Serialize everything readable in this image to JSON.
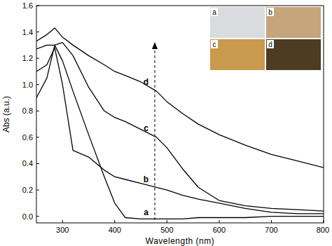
{
  "chart_data": {
    "type": "line",
    "x_label": "Wavelength (nm)",
    "y_label": "Abs (a.u.)",
    "x": [
      250,
      270,
      285,
      300,
      320,
      350,
      380,
      400,
      420,
      450,
      480,
      500,
      530,
      560,
      600,
      650,
      700,
      750,
      800
    ],
    "series": [
      {
        "name": "a",
        "color": "#000000",
        "values": [
          0.9,
          1.05,
          1.3,
          1.18,
          0.95,
          0.62,
          0.3,
          0.1,
          -0.01,
          -0.02,
          -0.02,
          -0.02,
          -0.02,
          -0.01,
          -0.01,
          -0.01,
          0.0,
          0.0,
          0.0
        ]
      },
      {
        "name": "b",
        "color": "#000000",
        "values": [
          1.1,
          1.15,
          1.28,
          1.0,
          0.5,
          0.45,
          0.35,
          0.3,
          0.28,
          0.25,
          0.22,
          0.2,
          0.16,
          0.13,
          0.1,
          0.06,
          0.03,
          0.02,
          0.02
        ]
      },
      {
        "name": "c",
        "color": "#000000",
        "values": [
          1.27,
          1.3,
          1.3,
          1.32,
          1.22,
          0.98,
          0.8,
          0.75,
          0.72,
          0.66,
          0.6,
          0.52,
          0.36,
          0.22,
          0.12,
          0.08,
          0.06,
          0.05,
          0.04
        ]
      },
      {
        "name": "d",
        "color": "#000000",
        "values": [
          1.33,
          1.38,
          1.43,
          1.36,
          1.3,
          1.22,
          1.15,
          1.1,
          1.07,
          1.02,
          0.95,
          0.87,
          0.78,
          0.7,
          0.62,
          0.54,
          0.47,
          0.42,
          0.37
        ]
      }
    ],
    "xlim": [
      250,
      800
    ],
    "xticks": [
      300,
      400,
      500,
      600,
      700,
      800
    ],
    "ylim": [
      -0.05,
      1.6
    ],
    "yticks": [
      {
        "value": 0,
        "label": "0.0"
      },
      {
        "value": 0.2,
        "label": "0.2"
      },
      {
        "value": 0.4,
        "label": "0.4"
      },
      {
        "value": 0.6,
        "label": "0.6"
      },
      {
        "value": 0.8,
        "label": "0.8"
      },
      {
        "value": 1,
        "label": "1.0"
      },
      {
        "value": 1.2,
        "label": "1.2"
      },
      {
        "value": 1.4,
        "label": "1.4"
      },
      {
        "value": 1.6,
        "label": "1.6"
      }
    ],
    "grid": false
  }
}
